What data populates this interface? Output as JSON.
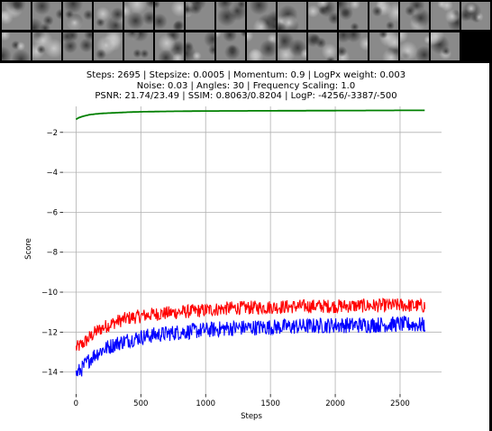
{
  "header_strip": {
    "thumbnail_count": 31,
    "colors": {
      "background": "#000000",
      "tile_base": "#8a8a8a",
      "tile_dark": "#3a3a3a",
      "tile_light": "#c8c8c8"
    }
  },
  "chart_data": {
    "type": "line",
    "title": "Steps: 2695 | Stepsize: 0.0005 | Momentum: 0.9 | LogPx weight: 0.003\nNoise: 0.03 | Angles: 30 | Frequency Scaling: 1.0\nPSNR: 21.74/23.49 | SSIM: 0.8063/0.8204 | LogP: -4256/-3387/-500",
    "xlabel": "Steps",
    "ylabel": "Score",
    "xlim": [
      -100,
      2820
    ],
    "ylim": [
      -15.1,
      -0.7
    ],
    "xticks": [
      0,
      500,
      1000,
      1500,
      2000,
      2500
    ],
    "yticks": [
      -14,
      -12,
      -10,
      -8,
      -6,
      -4,
      -2
    ],
    "grid": true,
    "legend": "none",
    "series": [
      {
        "color": "#008000",
        "noise": 0.0,
        "x": [
          0,
          20,
          50,
          100,
          150,
          200,
          300,
          400,
          500,
          700,
          1000,
          1500,
          2000,
          2500,
          2695
        ],
        "values": [
          -1.35,
          -1.27,
          -1.2,
          -1.12,
          -1.08,
          -1.05,
          -1.02,
          -0.99,
          -0.97,
          -0.95,
          -0.93,
          -0.92,
          -0.91,
          -0.9,
          -0.9
        ]
      },
      {
        "color": "#ff0000",
        "noise": 0.35,
        "x": [
          0,
          50,
          100,
          150,
          200,
          300,
          400,
          500,
          600,
          800,
          1000,
          1200,
          1500,
          1800,
          2000,
          2200,
          2500,
          2695
        ],
        "values": [
          -12.8,
          -12.6,
          -12.3,
          -12.0,
          -11.8,
          -11.5,
          -11.3,
          -11.2,
          -11.1,
          -11.0,
          -10.9,
          -10.8,
          -10.75,
          -10.7,
          -10.7,
          -10.68,
          -10.65,
          -10.7
        ]
      },
      {
        "color": "#0000ff",
        "noise": 0.4,
        "x": [
          0,
          50,
          100,
          150,
          200,
          300,
          400,
          500,
          600,
          800,
          1000,
          1200,
          1500,
          1800,
          2000,
          2200,
          2500,
          2695
        ],
        "values": [
          -14.1,
          -13.8,
          -13.4,
          -13.1,
          -12.9,
          -12.6,
          -12.4,
          -12.25,
          -12.15,
          -12.0,
          -11.9,
          -11.8,
          -11.75,
          -11.7,
          -11.65,
          -11.65,
          -11.6,
          -11.65
        ]
      }
    ]
  }
}
